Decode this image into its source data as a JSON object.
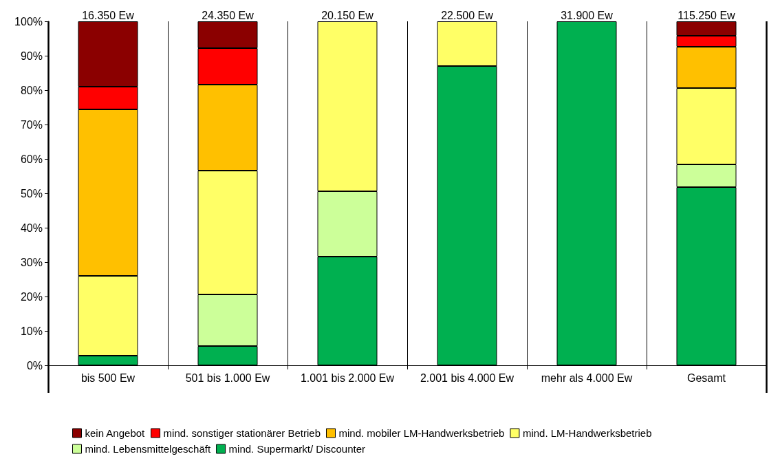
{
  "chart_data": {
    "type": "bar",
    "stacked": true,
    "categories": [
      "bis 500 Ew",
      "501 bis 1.000 Ew",
      "1.001 bis 2.000 Ew",
      "2.001 bis 4.000 Ew",
      "mehr als 4.000 Ew",
      "Gesamt"
    ],
    "series": [
      {
        "name": "mind. Supermarkt/ Discounter",
        "color": "#00b050",
        "values": [
          2.8,
          5.6,
          31.6,
          87,
          100,
          51.8
        ]
      },
      {
        "name": "mind. Lebensmittelgeschäft",
        "color": "#ccff99",
        "values": [
          null,
          15,
          19,
          null,
          null,
          6.6
        ]
      },
      {
        "name": "mind. LM-Handwerksbetrieb",
        "color": "#ffff66",
        "values": [
          23.2,
          36,
          49.4,
          13,
          null,
          22.2
        ]
      },
      {
        "name": "mind. mobiler LM-Handwerksbetrieb",
        "color": "#ffc000",
        "values": [
          48.4,
          25,
          null,
          null,
          null,
          12
        ]
      },
      {
        "name": "mind. sonstiger stationärer Betrieb",
        "color": "#ff0000",
        "values": [
          6.6,
          10.6,
          null,
          null,
          null,
          3.2
        ]
      },
      {
        "name": "kein Angebot",
        "color": "#8b0000",
        "values": [
          19,
          7.8,
          null,
          null,
          null,
          4.2
        ]
      }
    ],
    "annotations": [
      {
        "text": "16.350 Ew",
        "x": "bis 500 Ew",
        "y": 100
      },
      {
        "text": "24.350 Ew",
        "x": "501 bis 1.000 Ew",
        "y": 100
      },
      {
        "text": "20.150 Ew",
        "x": "1.001 bis 2.000 Ew",
        "y": 100
      },
      {
        "text": "22.500 Ew",
        "x": "2.001 bis 4.000 Ew",
        "y": 100
      },
      {
        "text": "31.900 Ew",
        "x": "mehr als 4.000 Ew",
        "y": 100
      },
      {
        "text": "115.250 Ew",
        "x": "Gesamt",
        "y": 100
      }
    ],
    "ylim": [
      0,
      100
    ],
    "yticks": [
      {
        "value": 0,
        "label": "0%"
      },
      {
        "value": 10,
        "label": "10%"
      },
      {
        "value": 20,
        "label": "20%"
      },
      {
        "value": 30,
        "label": "30%"
      },
      {
        "value": 40,
        "label": "40%"
      },
      {
        "value": 50,
        "label": "50%"
      },
      {
        "value": 60,
        "label": "60%"
      },
      {
        "value": 70,
        "label": "70%"
      },
      {
        "value": 80,
        "label": "80%"
      },
      {
        "value": 90,
        "label": "90%"
      },
      {
        "value": 100,
        "label": "100%"
      }
    ],
    "grid": "x",
    "legend": "bottom"
  }
}
